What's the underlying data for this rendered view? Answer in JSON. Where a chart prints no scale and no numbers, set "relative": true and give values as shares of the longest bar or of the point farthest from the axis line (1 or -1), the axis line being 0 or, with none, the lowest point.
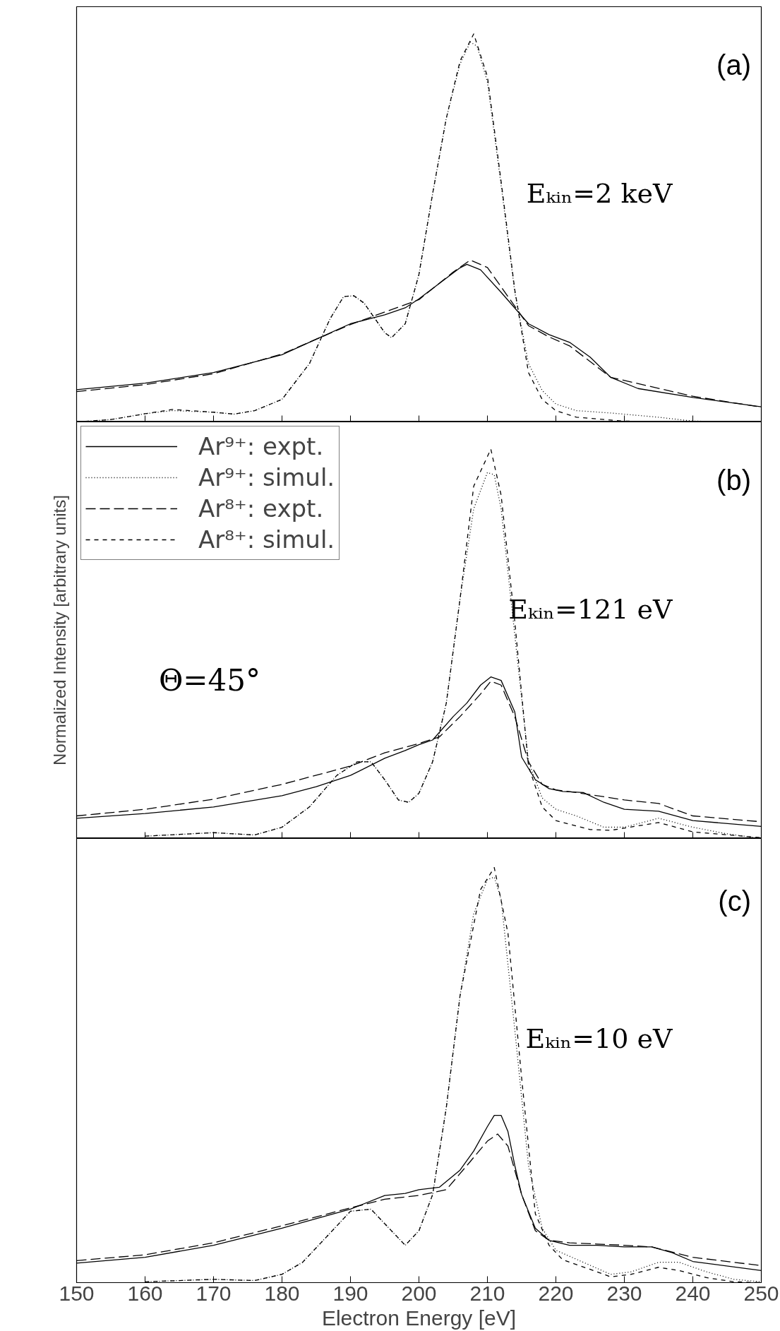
{
  "chart_data": [
    {
      "type": "line",
      "relative": true,
      "xlim": [
        150,
        250
      ],
      "xticks": [
        150,
        160,
        170,
        180,
        190,
        200,
        210,
        220,
        230,
        240,
        250
      ],
      "tick_labels": false,
      "annotations": [
        "(a)",
        "Eₖᵢₙ=2 keV"
      ],
      "series": [
        {
          "color": "#000000",
          "line_style": "solid",
          "x": [
            150,
            160,
            170,
            180,
            185,
            190,
            195,
            198,
            200,
            203,
            206,
            207,
            209,
            212,
            216,
            219,
            222,
            225,
            228,
            232,
            240,
            250
          ],
          "values": [
            0.083,
            0.1,
            0.127,
            0.173,
            0.213,
            0.253,
            0.276,
            0.294,
            0.317,
            0.357,
            0.397,
            0.406,
            0.392,
            0.334,
            0.253,
            0.225,
            0.205,
            0.167,
            0.115,
            0.086,
            0.063,
            0.039
          ]
        },
        {
          "color": "#000000",
          "line_style": "dotted",
          "x": [
            150,
            155,
            160,
            164,
            170,
            173,
            176,
            180,
            184,
            187,
            189,
            190.5,
            192,
            195,
            196,
            198,
            200,
            202,
            204,
            206,
            207.5,
            208.5,
            210,
            212,
            214,
            216,
            218,
            220,
            223,
            228,
            235,
            240,
            250
          ],
          "values": [
            0.0,
            0.006,
            0.021,
            0.029,
            0.025,
            0.02,
            0.029,
            0.058,
            0.15,
            0.265,
            0.323,
            0.325,
            0.306,
            0.23,
            0.217,
            0.253,
            0.38,
            0.588,
            0.783,
            0.922,
            0.979,
            0.968,
            0.876,
            0.61,
            0.334,
            0.15,
            0.081,
            0.046,
            0.029,
            0.023,
            0.012,
            0.002,
            0.0
          ]
        },
        {
          "color": "#000000",
          "line_style": "dashed",
          "x": [
            150,
            160,
            170,
            180,
            190,
            200,
            205,
            207.5,
            210,
            213,
            216,
            219,
            222,
            228,
            240,
            250
          ],
          "values": [
            0.078,
            0.096,
            0.124,
            0.175,
            0.251,
            0.315,
            0.386,
            0.417,
            0.398,
            0.323,
            0.248,
            0.219,
            0.196,
            0.115,
            0.066,
            0.038
          ]
        },
        {
          "color": "#000000",
          "line_style": "dashed",
          "x": [
            150,
            155,
            160,
            164,
            170,
            173,
            176,
            180,
            184,
            187,
            189,
            190.5,
            192,
            195,
            196,
            198,
            200,
            202,
            204,
            206,
            208,
            210,
            212,
            214,
            216,
            218,
            220,
            223,
            230,
            240,
            250
          ],
          "values": [
            0.0,
            0.006,
            0.021,
            0.032,
            0.025,
            0.02,
            0.029,
            0.058,
            0.15,
            0.265,
            0.323,
            0.325,
            0.306,
            0.23,
            0.217,
            0.253,
            0.38,
            0.588,
            0.783,
            0.93,
            1.0,
            0.89,
            0.62,
            0.34,
            0.127,
            0.058,
            0.029,
            0.012,
            0.002,
            0.0,
            0.0
          ]
        }
      ]
    },
    {
      "type": "line",
      "relative": true,
      "xlim": [
        150,
        250
      ],
      "xticks": [
        150,
        160,
        170,
        180,
        190,
        200,
        210,
        220,
        230,
        240,
        250
      ],
      "tick_labels": false,
      "legend": "top left",
      "ylabel": "Normalized Intensity [arbitrary units]",
      "annotations": [
        "(b)",
        "Eₖᵢₙ=121 eV",
        "Θ=45°"
      ],
      "series": [
        {
          "name": "Ar⁹⁺: expt.",
          "color": "#000000",
          "line_style": "solid",
          "x": [
            150,
            160,
            170,
            180,
            185,
            190,
            195,
            198,
            200,
            202,
            205,
            207,
            209,
            210.5,
            212,
            214,
            215,
            217,
            219,
            221,
            224,
            227,
            230,
            235,
            240,
            250
          ],
          "values": [
            0.052,
            0.064,
            0.081,
            0.11,
            0.133,
            0.162,
            0.206,
            0.226,
            0.241,
            0.253,
            0.313,
            0.348,
            0.394,
            0.415,
            0.406,
            0.325,
            0.209,
            0.151,
            0.128,
            0.121,
            0.118,
            0.093,
            0.075,
            0.07,
            0.046,
            0.031
          ]
        },
        {
          "name": "Ar⁹⁺: simul.",
          "color": "#000000",
          "line_style": "dotted",
          "x": [
            160,
            170,
            176,
            180,
            184,
            188,
            191,
            193,
            195,
            197,
            198.5,
            200,
            202,
            204,
            206,
            208,
            210,
            211,
            212,
            214,
            216,
            218,
            220,
            223,
            227,
            230,
            235,
            240,
            245,
            250
          ],
          "values": [
            0.006,
            0.015,
            0.009,
            0.029,
            0.081,
            0.162,
            0.197,
            0.197,
            0.151,
            0.099,
            0.093,
            0.116,
            0.197,
            0.348,
            0.615,
            0.847,
            0.94,
            0.934,
            0.847,
            0.522,
            0.197,
            0.104,
            0.075,
            0.058,
            0.029,
            0.029,
            0.052,
            0.029,
            0.012,
            0.0
          ]
        },
        {
          "name": "Ar⁸⁺: expt.",
          "color": "#000000",
          "line_style": "dashed",
          "x": [
            150,
            160,
            170,
            180,
            190,
            195,
            200,
            203,
            206,
            209,
            210.5,
            212,
            214,
            216,
            218,
            220,
            223,
            226,
            230,
            235,
            240,
            250
          ],
          "values": [
            0.058,
            0.075,
            0.101,
            0.139,
            0.186,
            0.22,
            0.244,
            0.261,
            0.313,
            0.371,
            0.404,
            0.394,
            0.313,
            0.197,
            0.139,
            0.125,
            0.118,
            0.11,
            0.099,
            0.09,
            0.058,
            0.043
          ]
        },
        {
          "name": "Ar⁸⁺: simul.",
          "color": "#000000",
          "line_style": "dashed",
          "x": [
            160,
            170,
            176,
            180,
            184,
            188,
            191,
            193,
            195,
            197,
            198.5,
            200,
            202,
            204,
            206,
            208,
            210.5,
            212,
            214,
            216,
            218,
            220,
            225,
            228,
            235,
            240,
            250
          ],
          "values": [
            0.006,
            0.015,
            0.009,
            0.029,
            0.081,
            0.162,
            0.197,
            0.197,
            0.151,
            0.099,
            0.093,
            0.116,
            0.197,
            0.348,
            0.615,
            0.905,
            1.0,
            0.882,
            0.557,
            0.186,
            0.081,
            0.046,
            0.023,
            0.021,
            0.041,
            0.017,
            0.002
          ]
        }
      ]
    },
    {
      "type": "line",
      "relative": true,
      "xlim": [
        150,
        250
      ],
      "xticks": [
        150,
        160,
        170,
        180,
        190,
        200,
        210,
        220,
        230,
        240,
        250
      ],
      "tick_labels": "x",
      "xlabel": "Electron Energy [eV]",
      "annotations": [
        "(c)",
        "Eₖᵢₙ=10 eV"
      ],
      "series": [
        {
          "color": "#000000",
          "line_style": "solid",
          "x": [
            150,
            160,
            170,
            180,
            185,
            190,
            195,
            198,
            200,
            203,
            206,
            208,
            210,
            211,
            212,
            213,
            214,
            215,
            217,
            219,
            222,
            226,
            230,
            234,
            237,
            240,
            250
          ],
          "values": [
            0.047,
            0.061,
            0.09,
            0.131,
            0.154,
            0.177,
            0.21,
            0.215,
            0.224,
            0.23,
            0.271,
            0.317,
            0.376,
            0.403,
            0.403,
            0.364,
            0.282,
            0.212,
            0.131,
            0.102,
            0.09,
            0.09,
            0.086,
            0.086,
            0.072,
            0.051,
            0.029
          ]
        },
        {
          "color": "#000000",
          "line_style": "dotted",
          "x": [
            160,
            170,
            176,
            180,
            183,
            187,
            190,
            193,
            195,
            198,
            200,
            202,
            204,
            206,
            208,
            210,
            211,
            212,
            214,
            216,
            218,
            220,
            224,
            228,
            231,
            235,
            238,
            242,
            246,
            250
          ],
          "values": [
            0.002,
            0.008,
            0.005,
            0.02,
            0.049,
            0.119,
            0.172,
            0.177,
            0.142,
            0.09,
            0.125,
            0.212,
            0.422,
            0.691,
            0.889,
            0.971,
            0.977,
            0.924,
            0.609,
            0.282,
            0.131,
            0.078,
            0.049,
            0.02,
            0.026,
            0.049,
            0.049,
            0.026,
            0.008,
            0.002
          ]
        },
        {
          "color": "#000000",
          "line_style": "dashed",
          "x": [
            150,
            160,
            170,
            180,
            190,
            195,
            200,
            204,
            207,
            210,
            211.5,
            213,
            215,
            217,
            219,
            222,
            226,
            230,
            234,
            240,
            250
          ],
          "values": [
            0.053,
            0.067,
            0.096,
            0.137,
            0.18,
            0.201,
            0.21,
            0.224,
            0.282,
            0.341,
            0.358,
            0.329,
            0.212,
            0.125,
            0.102,
            0.096,
            0.093,
            0.09,
            0.086,
            0.061,
            0.041
          ]
        },
        {
          "color": "#000000",
          "line_style": "dashed",
          "x": [
            160,
            170,
            176,
            180,
            183,
            187,
            190,
            193,
            195,
            198,
            200,
            202,
            204,
            206,
            209,
            211,
            213,
            215,
            217,
            219,
            221,
            225,
            228,
            231,
            235,
            238,
            242,
            246,
            250
          ],
          "values": [
            0.002,
            0.008,
            0.005,
            0.02,
            0.049,
            0.119,
            0.172,
            0.177,
            0.142,
            0.09,
            0.125,
            0.212,
            0.422,
            0.691,
            0.947,
            1.0,
            0.842,
            0.493,
            0.166,
            0.09,
            0.055,
            0.032,
            0.014,
            0.02,
            0.037,
            0.029,
            0.012,
            0.002,
            0.0
          ]
        }
      ]
    }
  ]
}
